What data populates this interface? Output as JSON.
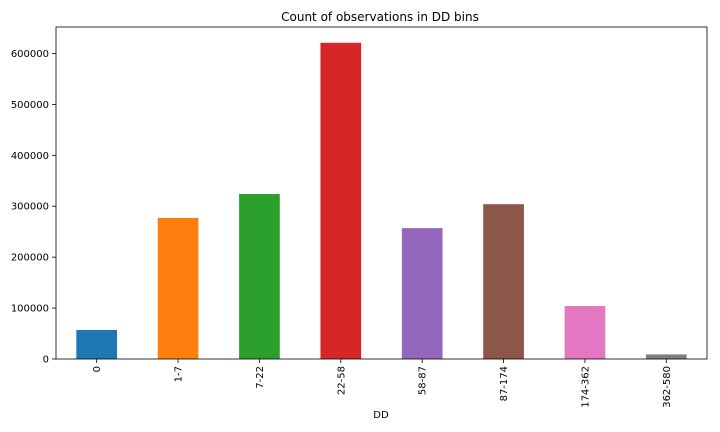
{
  "chart_data": {
    "type": "bar",
    "title": "Count of observations in DD bins",
    "xlabel": "DD",
    "ylabel": "",
    "categories": [
      "0",
      "1-7",
      "7-22",
      "22-58",
      "58-87",
      "87-174",
      "174-362",
      "362-580"
    ],
    "values": [
      57000,
      277000,
      324000,
      621000,
      257000,
      304000,
      104000,
      9000
    ],
    "colors": [
      "#1f77b4",
      "#ff7f0e",
      "#2ca02c",
      "#d62728",
      "#9467bd",
      "#8c564b",
      "#e377c2",
      "#7f7f7f"
    ],
    "ylim": [
      0,
      652000
    ],
    "yticks": [
      "0",
      "100000",
      "200000",
      "300000",
      "400000",
      "500000",
      "600000"
    ],
    "grid": false,
    "legend": "none"
  }
}
